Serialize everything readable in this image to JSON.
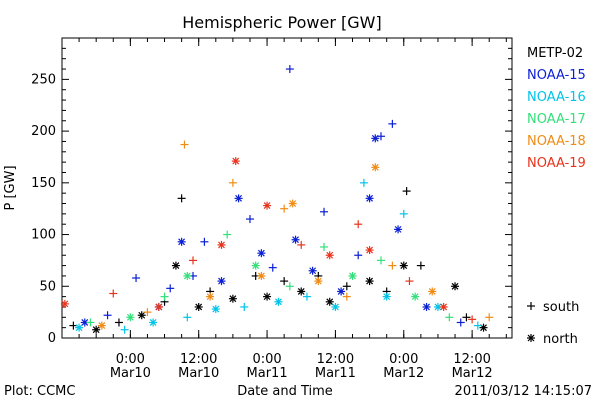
{
  "chart_data": {
    "type": "scatter",
    "title": "Hemispheric Power [GW]",
    "xlabel": "Date and Time",
    "ylabel": "P [GW]",
    "ylim": [
      0,
      290
    ],
    "yticks": [
      0,
      50,
      100,
      150,
      200,
      250
    ],
    "xlim": [
      "2011-03-09 12:00",
      "2011-03-12 19:00"
    ],
    "xticks": [
      {
        "at": "2011-03-10 00:00",
        "time": "0:00",
        "date": "Mar10"
      },
      {
        "at": "2011-03-10 12:00",
        "time": "12:00",
        "date": "Mar10"
      },
      {
        "at": "2011-03-11 00:00",
        "time": "0:00",
        "date": "Mar11"
      },
      {
        "at": "2011-03-11 12:00",
        "time": "12:00",
        "date": "Mar11"
      },
      {
        "at": "2011-03-12 00:00",
        "time": "0:00",
        "date": "Mar12"
      },
      {
        "at": "2011-03-12 12:00",
        "time": "12:00",
        "date": "Mar12"
      }
    ],
    "marker_legend": [
      {
        "symbol": "+",
        "label": "south"
      },
      {
        "symbol": "*",
        "label": "north"
      }
    ],
    "series": [
      {
        "name": "METP-02",
        "color": "#000000",
        "points": [
          {
            "t": "2011-03-09 14:00",
            "v": 12,
            "hemi": "south"
          },
          {
            "t": "2011-03-09 18:00",
            "v": 8,
            "hemi": "north"
          },
          {
            "t": "2011-03-09 22:00",
            "v": 15,
            "hemi": "south"
          },
          {
            "t": "2011-03-10 02:00",
            "v": 22,
            "hemi": "north"
          },
          {
            "t": "2011-03-10 06:00",
            "v": 35,
            "hemi": "south"
          },
          {
            "t": "2011-03-10 08:00",
            "v": 70,
            "hemi": "north"
          },
          {
            "t": "2011-03-10 09:00",
            "v": 135,
            "hemi": "south"
          },
          {
            "t": "2011-03-10 12:00",
            "v": 30,
            "hemi": "north"
          },
          {
            "t": "2011-03-10 14:00",
            "v": 45,
            "hemi": "south"
          },
          {
            "t": "2011-03-10 18:00",
            "v": 38,
            "hemi": "north"
          },
          {
            "t": "2011-03-10 22:00",
            "v": 60,
            "hemi": "south"
          },
          {
            "t": "2011-03-11 00:00",
            "v": 40,
            "hemi": "north"
          },
          {
            "t": "2011-03-11 03:00",
            "v": 55,
            "hemi": "south"
          },
          {
            "t": "2011-03-11 06:00",
            "v": 45,
            "hemi": "north"
          },
          {
            "t": "2011-03-11 09:00",
            "v": 60,
            "hemi": "south"
          },
          {
            "t": "2011-03-11 11:00",
            "v": 35,
            "hemi": "north"
          },
          {
            "t": "2011-03-11 14:00",
            "v": 50,
            "hemi": "south"
          },
          {
            "t": "2011-03-11 18:00",
            "v": 55,
            "hemi": "north"
          },
          {
            "t": "2011-03-11 21:00",
            "v": 45,
            "hemi": "south"
          },
          {
            "t": "2011-03-12 00:00",
            "v": 70,
            "hemi": "north"
          },
          {
            "t": "2011-03-12 00:30",
            "v": 142,
            "hemi": "south"
          },
          {
            "t": "2011-03-12 03:00",
            "v": 70,
            "hemi": "south"
          },
          {
            "t": "2011-03-12 09:00",
            "v": 50,
            "hemi": "north"
          },
          {
            "t": "2011-03-12 11:00",
            "v": 20,
            "hemi": "south"
          },
          {
            "t": "2011-03-12 14:00",
            "v": 10,
            "hemi": "north"
          }
        ]
      },
      {
        "name": "NOAA-15",
        "color": "#0a1fd6",
        "points": [
          {
            "t": "2011-03-09 16:00",
            "v": 15,
            "hemi": "north"
          },
          {
            "t": "2011-03-09 20:00",
            "v": 22,
            "hemi": "south"
          },
          {
            "t": "2011-03-10 01:00",
            "v": 58,
            "hemi": "south"
          },
          {
            "t": "2011-03-10 05:00",
            "v": 30,
            "hemi": "north"
          },
          {
            "t": "2011-03-10 07:00",
            "v": 48,
            "hemi": "south"
          },
          {
            "t": "2011-03-10 09:00",
            "v": 93,
            "hemi": "north"
          },
          {
            "t": "2011-03-10 11:00",
            "v": 60,
            "hemi": "south"
          },
          {
            "t": "2011-03-10 13:00",
            "v": 93,
            "hemi": "south"
          },
          {
            "t": "2011-03-10 16:00",
            "v": 55,
            "hemi": "north"
          },
          {
            "t": "2011-03-10 19:00",
            "v": 135,
            "hemi": "north"
          },
          {
            "t": "2011-03-10 21:00",
            "v": 115,
            "hemi": "south"
          },
          {
            "t": "2011-03-10 23:00",
            "v": 82,
            "hemi": "north"
          },
          {
            "t": "2011-03-11 01:00",
            "v": 68,
            "hemi": "south"
          },
          {
            "t": "2011-03-11 04:00",
            "v": 260,
            "hemi": "south"
          },
          {
            "t": "2011-03-11 05:00",
            "v": 95,
            "hemi": "north"
          },
          {
            "t": "2011-03-11 08:00",
            "v": 65,
            "hemi": "north"
          },
          {
            "t": "2011-03-11 10:00",
            "v": 122,
            "hemi": "south"
          },
          {
            "t": "2011-03-11 13:00",
            "v": 45,
            "hemi": "north"
          },
          {
            "t": "2011-03-11 16:00",
            "v": 80,
            "hemi": "south"
          },
          {
            "t": "2011-03-11 18:00",
            "v": 135,
            "hemi": "north"
          },
          {
            "t": "2011-03-11 19:00",
            "v": 193,
            "hemi": "north"
          },
          {
            "t": "2011-03-11 20:00",
            "v": 195,
            "hemi": "south"
          },
          {
            "t": "2011-03-11 22:00",
            "v": 207,
            "hemi": "south"
          },
          {
            "t": "2011-03-11 23:00",
            "v": 105,
            "hemi": "north"
          },
          {
            "t": "2011-03-12 04:00",
            "v": 30,
            "hemi": "north"
          },
          {
            "t": "2011-03-12 10:00",
            "v": 15,
            "hemi": "south"
          }
        ]
      },
      {
        "name": "NOAA-16",
        "color": "#00c4e8",
        "points": [
          {
            "t": "2011-03-09 15:00",
            "v": 10,
            "hemi": "north"
          },
          {
            "t": "2011-03-09 23:00",
            "v": 8,
            "hemi": "south"
          },
          {
            "t": "2011-03-10 04:00",
            "v": 15,
            "hemi": "north"
          },
          {
            "t": "2011-03-10 10:00",
            "v": 20,
            "hemi": "south"
          },
          {
            "t": "2011-03-10 15:00",
            "v": 28,
            "hemi": "north"
          },
          {
            "t": "2011-03-10 20:00",
            "v": 30,
            "hemi": "south"
          },
          {
            "t": "2011-03-11 02:00",
            "v": 35,
            "hemi": "north"
          },
          {
            "t": "2011-03-11 07:00",
            "v": 40,
            "hemi": "south"
          },
          {
            "t": "2011-03-11 12:00",
            "v": 30,
            "hemi": "north"
          },
          {
            "t": "2011-03-11 17:00",
            "v": 150,
            "hemi": "south"
          },
          {
            "t": "2011-03-11 21:00",
            "v": 40,
            "hemi": "north"
          },
          {
            "t": "2011-03-12 00:00",
            "v": 120,
            "hemi": "south"
          },
          {
            "t": "2011-03-12 06:00",
            "v": 30,
            "hemi": "north"
          },
          {
            "t": "2011-03-12 13:00",
            "v": 12,
            "hemi": "south"
          }
        ]
      },
      {
        "name": "NOAA-17",
        "color": "#33e07a",
        "points": [
          {
            "t": "2011-03-09 17:00",
            "v": 15,
            "hemi": "south"
          },
          {
            "t": "2011-03-10 00:00",
            "v": 20,
            "hemi": "north"
          },
          {
            "t": "2011-03-10 06:00",
            "v": 40,
            "hemi": "south"
          },
          {
            "t": "2011-03-10 10:00",
            "v": 60,
            "hemi": "north"
          },
          {
            "t": "2011-03-10 17:00",
            "v": 100,
            "hemi": "south"
          },
          {
            "t": "2011-03-10 22:00",
            "v": 70,
            "hemi": "north"
          },
          {
            "t": "2011-03-11 04:00",
            "v": 50,
            "hemi": "south"
          },
          {
            "t": "2011-03-11 10:00",
            "v": 88,
            "hemi": "south"
          },
          {
            "t": "2011-03-11 15:00",
            "v": 60,
            "hemi": "north"
          },
          {
            "t": "2011-03-11 20:00",
            "v": 75,
            "hemi": "south"
          },
          {
            "t": "2011-03-12 02:00",
            "v": 40,
            "hemi": "north"
          },
          {
            "t": "2011-03-12 08:00",
            "v": 20,
            "hemi": "south"
          }
        ]
      },
      {
        "name": "NOAA-18",
        "color": "#f08c16",
        "points": [
          {
            "t": "2011-03-09 19:00",
            "v": 12,
            "hemi": "north"
          },
          {
            "t": "2011-03-10 03:00",
            "v": 25,
            "hemi": "south"
          },
          {
            "t": "2011-03-10 09:30",
            "v": 187,
            "hemi": "south"
          },
          {
            "t": "2011-03-10 14:00",
            "v": 40,
            "hemi": "north"
          },
          {
            "t": "2011-03-10 18:00",
            "v": 150,
            "hemi": "south"
          },
          {
            "t": "2011-03-10 23:00",
            "v": 60,
            "hemi": "north"
          },
          {
            "t": "2011-03-11 03:00",
            "v": 125,
            "hemi": "south"
          },
          {
            "t": "2011-03-11 04:30",
            "v": 130,
            "hemi": "north"
          },
          {
            "t": "2011-03-11 09:00",
            "v": 55,
            "hemi": "north"
          },
          {
            "t": "2011-03-11 14:00",
            "v": 40,
            "hemi": "south"
          },
          {
            "t": "2011-03-11 19:00",
            "v": 165,
            "hemi": "north"
          },
          {
            "t": "2011-03-11 22:00",
            "v": 70,
            "hemi": "south"
          },
          {
            "t": "2011-03-12 05:00",
            "v": 45,
            "hemi": "north"
          },
          {
            "t": "2011-03-12 15:00",
            "v": 20,
            "hemi": "south"
          }
        ]
      },
      {
        "name": "NOAA-19",
        "color": "#e8341c",
        "points": [
          {
            "t": "2011-03-09 12:30",
            "v": 33,
            "hemi": "north"
          },
          {
            "t": "2011-03-09 21:00",
            "v": 43,
            "hemi": "south"
          },
          {
            "t": "2011-03-10 05:00",
            "v": 30,
            "hemi": "north"
          },
          {
            "t": "2011-03-10 11:00",
            "v": 75,
            "hemi": "south"
          },
          {
            "t": "2011-03-10 16:00",
            "v": 90,
            "hemi": "north"
          },
          {
            "t": "2011-03-10 18:30",
            "v": 171,
            "hemi": "north"
          },
          {
            "t": "2011-03-11 00:00",
            "v": 128,
            "hemi": "north"
          },
          {
            "t": "2011-03-11 06:00",
            "v": 90,
            "hemi": "south"
          },
          {
            "t": "2011-03-11 11:00",
            "v": 80,
            "hemi": "north"
          },
          {
            "t": "2011-03-11 16:00",
            "v": 110,
            "hemi": "south"
          },
          {
            "t": "2011-03-11 18:00",
            "v": 85,
            "hemi": "north"
          },
          {
            "t": "2011-03-12 01:00",
            "v": 55,
            "hemi": "south"
          },
          {
            "t": "2011-03-12 07:00",
            "v": 30,
            "hemi": "north"
          },
          {
            "t": "2011-03-12 12:00",
            "v": 18,
            "hemi": "south"
          }
        ]
      }
    ]
  },
  "footer": {
    "left": "Plot: CCMC",
    "right": "2011/03/12 14:15:07"
  }
}
